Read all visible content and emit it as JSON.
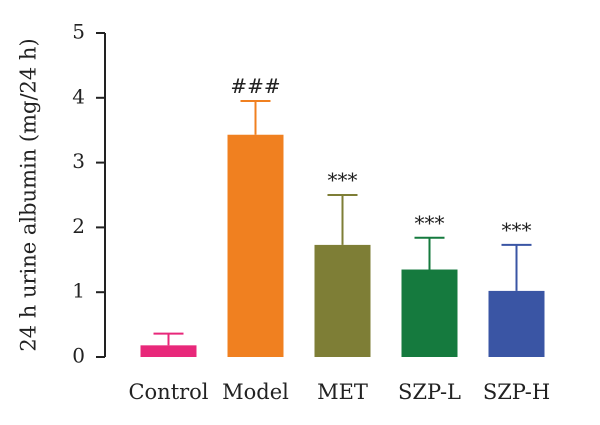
{
  "chart_data": {
    "type": "bar",
    "categories": [
      "Control",
      "Model",
      "MET",
      "SZP-L",
      "SZP-H"
    ],
    "values": [
      0.18,
      3.43,
      1.73,
      1.35,
      1.02
    ],
    "errors": [
      0.18,
      0.52,
      0.77,
      0.49,
      0.71
    ],
    "annotations": [
      "",
      "###",
      "***",
      "***",
      "***"
    ],
    "colors": [
      "#e8287a",
      "#f08020",
      "#7e7e36",
      "#157a3e",
      "#3a55a4"
    ],
    "title": "",
    "xlabel": "",
    "ylabel": "24 h urine albumin (mg/24 h)",
    "ylim": [
      0,
      5
    ],
    "yticks": [
      0,
      1,
      2,
      3,
      4,
      5
    ],
    "grid": false,
    "legend": "none"
  }
}
